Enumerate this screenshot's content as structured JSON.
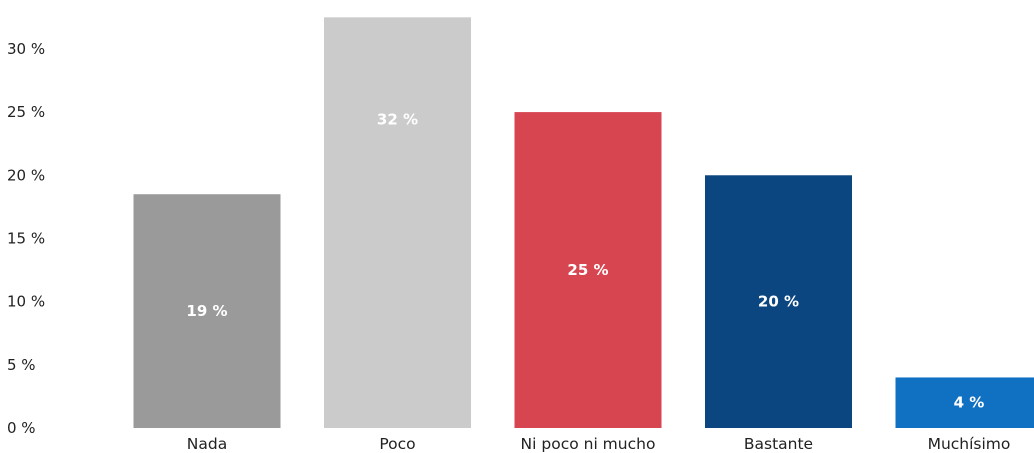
{
  "chart_data": {
    "type": "bar",
    "title": "",
    "xlabel": "",
    "ylabel": "",
    "ylim": [
      0,
      33
    ],
    "grid": false,
    "y_ticks": [
      0,
      5,
      10,
      15,
      20,
      25,
      30
    ],
    "y_tick_labels": [
      "0 %",
      "5 %",
      "10 %",
      "15 %",
      "20 %",
      "25 %",
      "30 %"
    ],
    "categories": [
      "Nada",
      "Poco",
      "Ni poco ni mucho",
      "Bastante",
      "Muchísimo"
    ],
    "values": [
      18.5,
      32.5,
      25,
      20,
      4
    ],
    "data_labels": [
      "19 %",
      "32 %",
      "25 %",
      "20 %",
      "4 %"
    ],
    "colors": [
      "#9a9a9a",
      "#cbcbcb",
      "#d64550",
      "#0c4680",
      "#1070c2"
    ]
  }
}
